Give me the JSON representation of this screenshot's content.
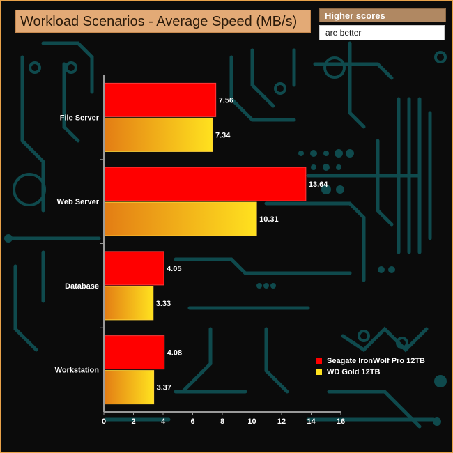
{
  "header": {
    "title": "Workload Scenarios - Average Speed (MB/s)",
    "note_line1": "Higher scores",
    "note_line2": "are better"
  },
  "colors": {
    "frame": "#e8a24a",
    "circuit": "#0f4a4d",
    "series1": "#ff0000",
    "series2_start": "#e37d14",
    "series2_end": "#ffe21f",
    "axis": "#9a9a9a"
  },
  "chart_data": {
    "type": "bar",
    "orientation": "horizontal",
    "categories": [
      "File Server",
      "Web Server",
      "Database",
      "Workstation"
    ],
    "series": [
      {
        "name": "Seagate IronWolf Pro 12TB",
        "values": [
          7.56,
          13.64,
          4.05,
          4.08
        ],
        "value_labels": [
          "7.56",
          "13.64",
          "4.05",
          "4.08"
        ]
      },
      {
        "name": "WD Gold 12TB",
        "values": [
          7.34,
          10.31,
          3.33,
          3.37
        ],
        "value_labels": [
          "7.34",
          "10.31",
          "3.33",
          "3.37"
        ]
      }
    ],
    "xlim": [
      0,
      16
    ],
    "x_ticks": [
      "0",
      "2",
      "4",
      "6",
      "8",
      "10",
      "12",
      "14",
      "16"
    ],
    "xlabel": "",
    "ylabel": "",
    "grid": false,
    "legend_position": "right"
  }
}
